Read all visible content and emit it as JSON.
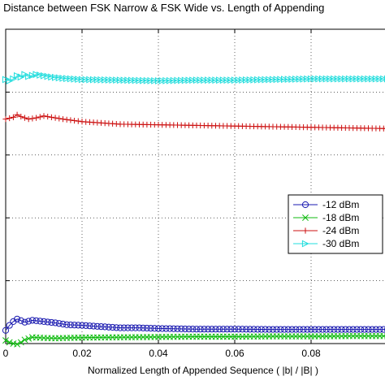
{
  "chart_data": {
    "type": "line",
    "title": "c Distance between FSK Narrow & FSK Wide vs. Length of Appending",
    "xlabel": "Normalized Length of Appended Sequence ( |b| / |B| )",
    "ylabel": "",
    "xlim": [
      0,
      0.1
    ],
    "ylim": [
      0,
      1
    ],
    "x_ticks": [
      0,
      0.02,
      0.04,
      0.06,
      0.08
    ],
    "x_tick_labels": [
      "0",
      "0.02",
      "0.04",
      "0.06",
      "0.08"
    ],
    "y_ticks": [
      0.2,
      0.4,
      0.6,
      0.8
    ],
    "grid": true,
    "legend_position": "right",
    "series": [
      {
        "name": "-12 dBm",
        "color": "#1a1ab0",
        "marker": "circle",
        "x": [
          0,
          0.001,
          0.002,
          0.003,
          0.005,
          0.007,
          0.01,
          0.013,
          0.016,
          0.02,
          0.025,
          0.03,
          0.035,
          0.04,
          0.05,
          0.06,
          0.07,
          0.08,
          0.09,
          0.1
        ],
        "y": [
          0.042,
          0.058,
          0.07,
          0.078,
          0.068,
          0.074,
          0.07,
          0.066,
          0.06,
          0.058,
          0.054,
          0.05,
          0.05,
          0.048,
          0.046,
          0.046,
          0.045,
          0.045,
          0.045,
          0.045
        ]
      },
      {
        "name": "-18 dBm",
        "color": "#11bb11",
        "marker": "x",
        "x": [
          0,
          0.001,
          0.002,
          0.003,
          0.004,
          0.005,
          0.007,
          0.01,
          0.013,
          0.02,
          0.03,
          0.04,
          0.05,
          0.06,
          0.07,
          0.08,
          0.09,
          0.1
        ],
        "y": [
          0.01,
          0.004,
          0.0,
          -0.002,
          0.004,
          0.012,
          0.02,
          0.018,
          0.017,
          0.019,
          0.02,
          0.021,
          0.022,
          0.022,
          0.023,
          0.023,
          0.024,
          0.024
        ]
      },
      {
        "name": "-24 dBm",
        "color": "#cc1111",
        "marker": "plus",
        "x": [
          0,
          0.002,
          0.003,
          0.004,
          0.006,
          0.008,
          0.01,
          0.012,
          0.015,
          0.02,
          0.03,
          0.04,
          0.05,
          0.06,
          0.07,
          0.08,
          0.09,
          0.1
        ],
        "y": [
          0.714,
          0.72,
          0.728,
          0.722,
          0.714,
          0.718,
          0.724,
          0.72,
          0.714,
          0.706,
          0.698,
          0.696,
          0.694,
          0.692,
          0.69,
          0.688,
          0.686,
          0.684
        ]
      },
      {
        "name": "-30 dBm",
        "color": "#22dddd",
        "marker": "triangle-right",
        "x": [
          0,
          0.001,
          0.002,
          0.003,
          0.004,
          0.005,
          0.006,
          0.008,
          0.01,
          0.012,
          0.015,
          0.02,
          0.03,
          0.04,
          0.05,
          0.06,
          0.07,
          0.08,
          0.09,
          0.1
        ],
        "y": [
          0.84,
          0.836,
          0.842,
          0.852,
          0.848,
          0.856,
          0.85,
          0.856,
          0.852,
          0.848,
          0.844,
          0.84,
          0.838,
          0.836,
          0.838,
          0.838,
          0.84,
          0.842,
          0.842,
          0.842
        ]
      }
    ]
  }
}
